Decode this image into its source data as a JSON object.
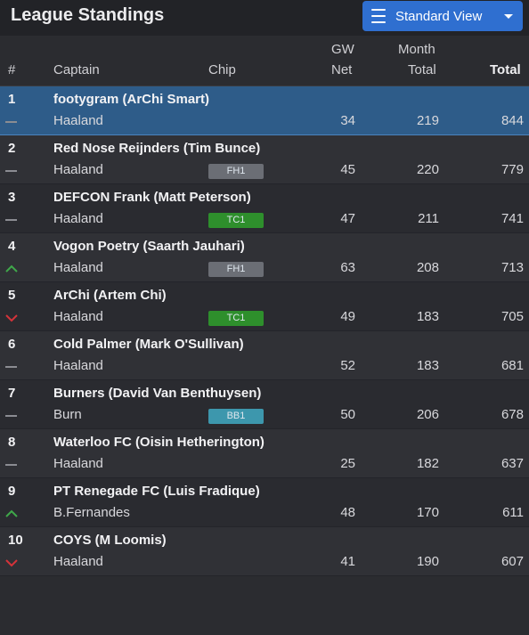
{
  "header": {
    "title": "League Standings",
    "view_label": "Standard View"
  },
  "columns": {
    "rank": "#",
    "captain": "Captain",
    "chip": "Chip",
    "gw_top": "GW",
    "gw_bottom": "Net",
    "month_top": "Month",
    "month_bottom": "Total",
    "total": "Total"
  },
  "colors": {
    "up": "#3fa84a",
    "down": "#d5333a",
    "same": "#8b8c92",
    "chip_FH1": "#6b6e75",
    "chip_TC1": "#2e8f2c",
    "chip_BB1": "#3d97ad",
    "highlight": "#2e5c89",
    "button": "#2f6fd0"
  },
  "rows": [
    {
      "rank": "1",
      "team": "footygram (ArChi Smart)",
      "captain": "Haaland",
      "chip": "",
      "gw_net": "34",
      "month_total": "219",
      "total": "844",
      "movement": "same"
    },
    {
      "rank": "2",
      "team": "Red Nose Reijnders (Tim Bunce)",
      "captain": "Haaland",
      "chip": "FH1",
      "gw_net": "45",
      "month_total": "220",
      "total": "779",
      "movement": "same"
    },
    {
      "rank": "3",
      "team": "DEFCON Frank (Matt Peterson)",
      "captain": "Haaland",
      "chip": "TC1",
      "gw_net": "47",
      "month_total": "211",
      "total": "741",
      "movement": "same"
    },
    {
      "rank": "4",
      "team": "Vogon Poetry (Saarth Jauhari)",
      "captain": "Haaland",
      "chip": "FH1",
      "gw_net": "63",
      "month_total": "208",
      "total": "713",
      "movement": "up"
    },
    {
      "rank": "5",
      "team": "ArChi (Artem Chi)",
      "captain": "Haaland",
      "chip": "TC1",
      "gw_net": "49",
      "month_total": "183",
      "total": "705",
      "movement": "down"
    },
    {
      "rank": "6",
      "team": "Cold Palmer (Mark O'Sullivan)",
      "captain": "Haaland",
      "chip": "",
      "gw_net": "52",
      "month_total": "183",
      "total": "681",
      "movement": "same"
    },
    {
      "rank": "7",
      "team": "Burners (David Van Benthuysen)",
      "captain": "Burn",
      "chip": "BB1",
      "gw_net": "50",
      "month_total": "206",
      "total": "678",
      "movement": "same"
    },
    {
      "rank": "8",
      "team": "Waterloo FC (Oisin Hetherington)",
      "captain": "Haaland",
      "chip": "",
      "gw_net": "25",
      "month_total": "182",
      "total": "637",
      "movement": "same"
    },
    {
      "rank": "9",
      "team": "PT Renegade FC (Luis Fradique)",
      "captain": "B.Fernandes",
      "chip": "",
      "gw_net": "48",
      "month_total": "170",
      "total": "611",
      "movement": "up"
    },
    {
      "rank": "10",
      "team": "COYS (M Loomis)",
      "captain": "Haaland",
      "chip": "",
      "gw_net": "41",
      "month_total": "190",
      "total": "607",
      "movement": "down"
    }
  ]
}
